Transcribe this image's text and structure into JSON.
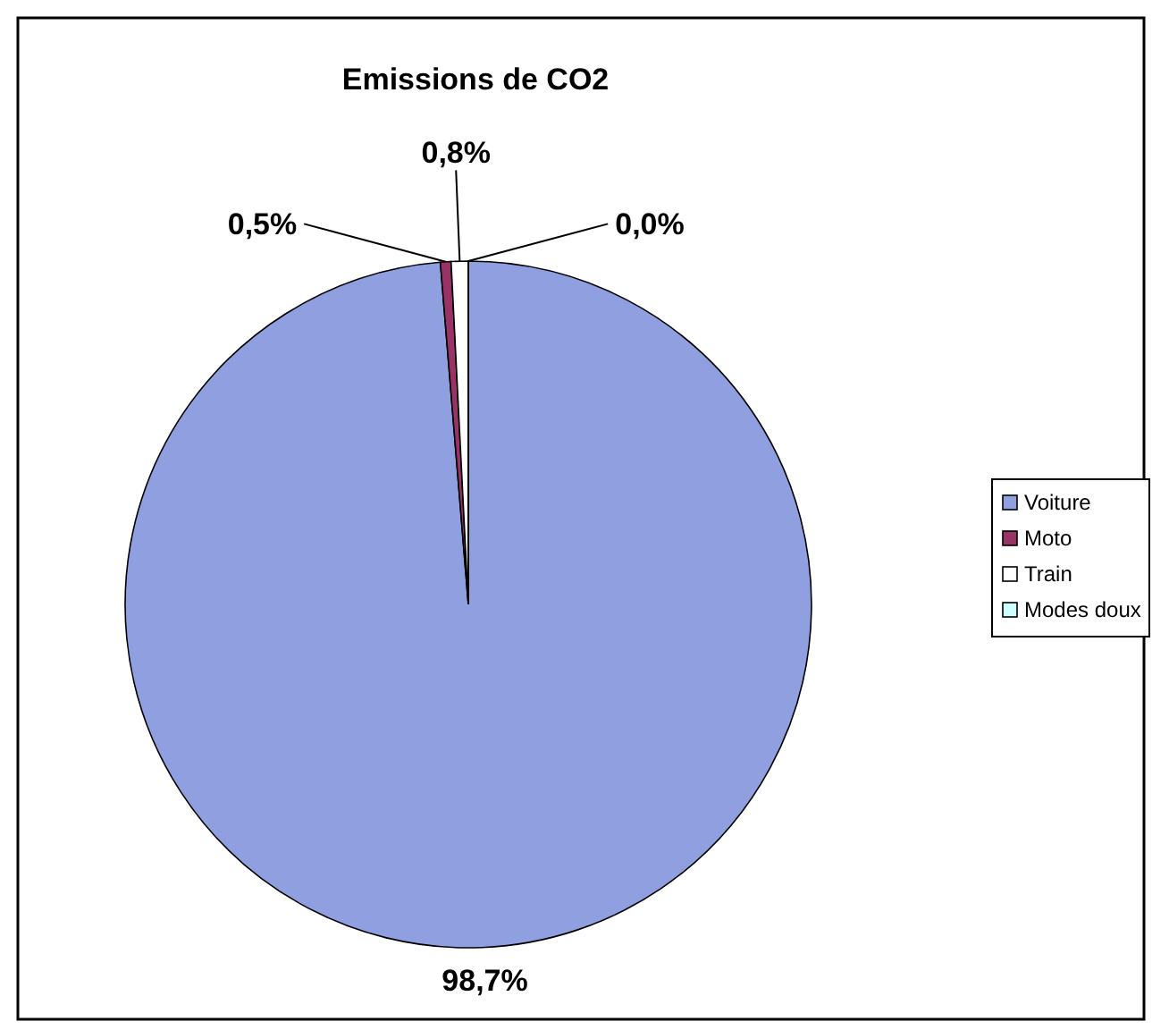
{
  "chart_data": {
    "type": "pie",
    "title": "Emissions de CO2",
    "categories": [
      "Voiture",
      "Moto",
      "Train",
      "Modes doux"
    ],
    "values": [
      98.7,
      0.5,
      0.8,
      0.0
    ],
    "value_labels": [
      "98,7%",
      "0,5%",
      "0,8%",
      "0,0%"
    ],
    "colors": [
      "#8f9fe0",
      "#993366",
      "#ffffff",
      "#ccffff"
    ],
    "legend": "right"
  }
}
